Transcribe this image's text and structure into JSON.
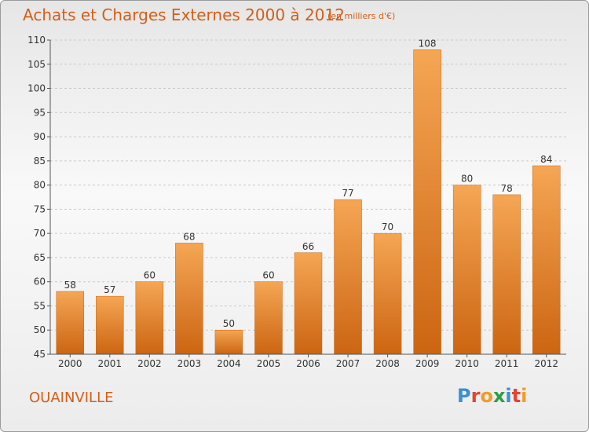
{
  "chart_data": {
    "type": "bar",
    "title": "Achats et Charges Externes 2000 à 2012",
    "subtitle": "(en milliers d'€)",
    "categories": [
      "2000",
      "2001",
      "2002",
      "2003",
      "2004",
      "2005",
      "2006",
      "2007",
      "2008",
      "2009",
      "2010",
      "2011",
      "2012"
    ],
    "values": [
      58,
      57,
      60,
      68,
      50,
      60,
      66,
      77,
      70,
      108,
      80,
      78,
      84
    ],
    "ylim": [
      45,
      110
    ],
    "yticks": [
      45,
      50,
      55,
      60,
      65,
      70,
      75,
      80,
      85,
      90,
      95,
      100,
      105,
      110
    ],
    "grid": "dashed horizontal",
    "bar_color": "#e8852e",
    "bar_highlight": "#f5a654",
    "bar_shadow": "#cc6512"
  },
  "footer": {
    "commune": "OUAINVILLE",
    "logo_letters": [
      {
        "ch": "P",
        "color": "#3b8fd3"
      },
      {
        "ch": "r",
        "color": "#e5442f"
      },
      {
        "ch": "o",
        "color": "#f19b28"
      },
      {
        "ch": "x",
        "color": "#2d9e48"
      },
      {
        "ch": "i",
        "color": "#3b8fd3"
      },
      {
        "ch": "t",
        "color": "#e5442f"
      },
      {
        "ch": "i",
        "color": "#f19b28"
      }
    ]
  }
}
